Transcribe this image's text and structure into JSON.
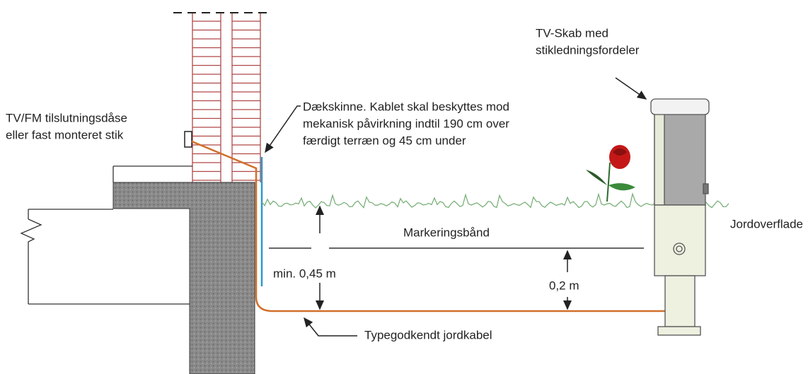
{
  "labels": {
    "cabinet": [
      "TV-Skab med",
      "stikledningsfordeler"
    ],
    "socket": [
      "TV/FM tilslutningsdåse",
      "eller fast monteret stik"
    ],
    "cover_rail": [
      "Dækskinne. Kablet skal beskyttes mod",
      "mekanisk påvirkning indtil 190 cm over",
      "færdigt terræn og 45 cm under"
    ],
    "marking_tape": "Markeringsbånd",
    "ground_surface": "Jordoverflade",
    "min_depth": "min. 0,45 m",
    "tape_depth": "0,2 m",
    "cable": "Typegodkendt jordkabel"
  }
}
